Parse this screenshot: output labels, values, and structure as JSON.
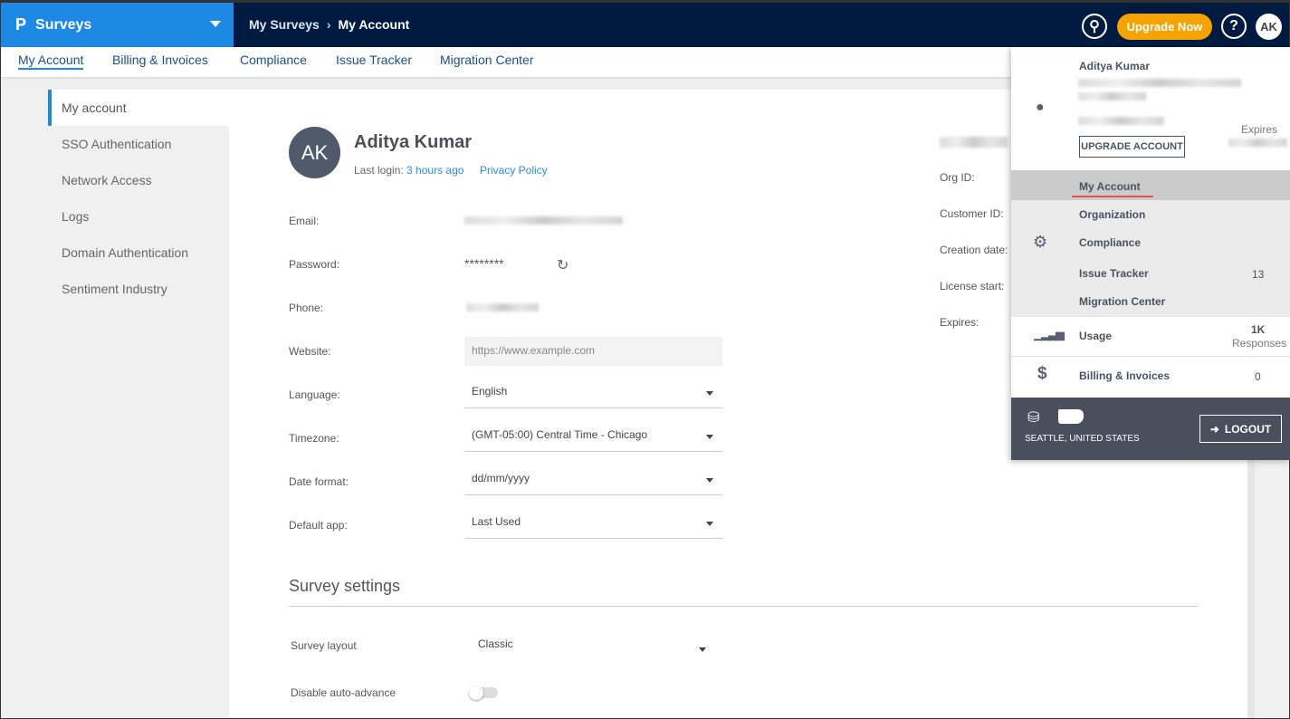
{
  "topbar": {
    "brand": "Surveys",
    "breadcrumb": [
      "My Surveys",
      "My Account"
    ],
    "upgrade": "Upgrade Now",
    "help": "?",
    "avatar": "AK"
  },
  "subnav": [
    "My Account",
    "Billing & Invoices",
    "Compliance",
    "Issue Tracker",
    "Migration Center"
  ],
  "sidebar": [
    "My account",
    "SSO Authentication",
    "Network Access",
    "Logs",
    "Domain Authentication",
    "Sentiment Industry"
  ],
  "profile": {
    "initials": "AK",
    "name": "Aditya Kumar",
    "last_login_label": "Last login:",
    "last_login": "3 hours ago",
    "privacy": "Privacy Policy"
  },
  "fields": {
    "email": "Email:",
    "password": "Password:",
    "password_value": "********",
    "phone": "Phone:",
    "website": "Website:",
    "website_placeholder": "https://www.example.com",
    "language": "Language:",
    "language_value": "English",
    "timezone": "Timezone:",
    "timezone_value": "(GMT-05:00) Central Time - Chicago",
    "date_format": "Date format:",
    "date_format_value": "dd/mm/yyyy",
    "default_app": "Default app:",
    "default_app_value": "Last Used"
  },
  "survey_settings": {
    "title": "Survey settings",
    "layout": "Survey layout",
    "layout_value": "Classic",
    "auto_advance": "Disable auto-advance",
    "auto_advance_on": false
  },
  "account_info": [
    "Org ID:",
    "Customer ID:",
    "Creation date:",
    "License start:",
    "Expires:"
  ],
  "dropdown": {
    "name": "Aditya Kumar",
    "upgrade": "UPGRADE ACCOUNT",
    "expires": "Expires",
    "menu": [
      "My Account",
      "Organization",
      "Compliance",
      "Issue Tracker",
      "Migration Center"
    ],
    "issue_count": "13",
    "usage": "Usage",
    "usage_value": "1K",
    "usage_unit": "Responses",
    "billing": "Billing & Invoices",
    "billing_value": "0",
    "location": "SEATTLE, UNITED STATES",
    "logout": "LOGOUT"
  },
  "colors": {
    "brand": "#1e88e5",
    "topbar": "#001a40",
    "upgrade": "#f5a300"
  }
}
